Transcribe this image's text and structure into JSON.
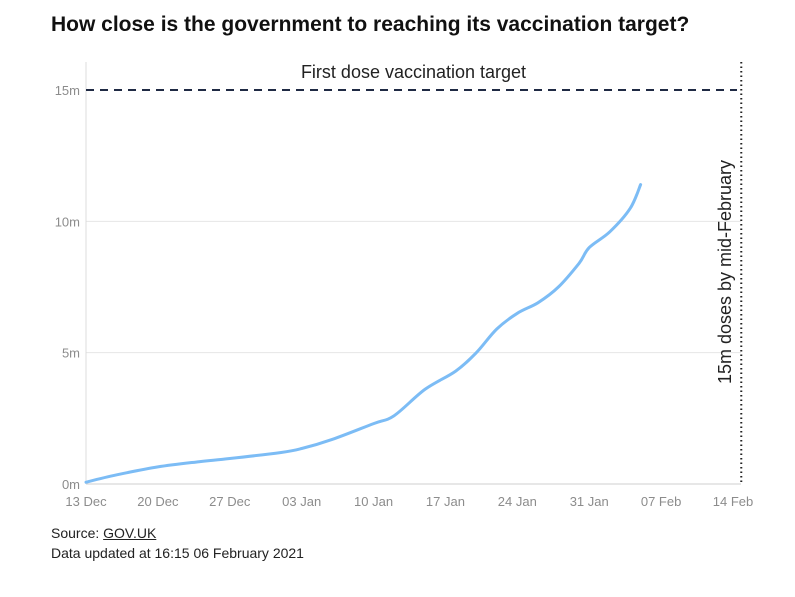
{
  "title": "How close is the government to reaching its vaccination target?",
  "chart_data": {
    "type": "line",
    "title": "How close is the government to reaching its vaccination target?",
    "xlabel": "",
    "ylabel": "",
    "x_ticks": [
      "13 Dec",
      "20 Dec",
      "27 Dec",
      "03 Jan",
      "10 Jan",
      "17 Jan",
      "24 Jan",
      "31 Jan",
      "07 Feb",
      "14 Feb"
    ],
    "x_range": [
      "2020-12-13",
      "2021-02-14"
    ],
    "y_ticks": [
      "0m",
      "5m",
      "10m",
      "15m"
    ],
    "ylim": [
      0,
      15
    ],
    "y_unit": "millions",
    "grid": "horizontal",
    "series": [
      {
        "name": "",
        "color": "#7cbcf5",
        "points": [
          {
            "x": "2020-12-13",
            "y": 0.07
          },
          {
            "x": "2020-12-16",
            "y": 0.35
          },
          {
            "x": "2020-12-20",
            "y": 0.65
          },
          {
            "x": "2020-12-24",
            "y": 0.85
          },
          {
            "x": "2020-12-27",
            "y": 0.97
          },
          {
            "x": "2021-01-01",
            "y": 1.2
          },
          {
            "x": "2021-01-03",
            "y": 1.35
          },
          {
            "x": "2021-01-06",
            "y": 1.7
          },
          {
            "x": "2021-01-10",
            "y": 2.3
          },
          {
            "x": "2021-01-12",
            "y": 2.6
          },
          {
            "x": "2021-01-15",
            "y": 3.6
          },
          {
            "x": "2021-01-18",
            "y": 4.3
          },
          {
            "x": "2021-01-20",
            "y": 5.0
          },
          {
            "x": "2021-01-22",
            "y": 5.9
          },
          {
            "x": "2021-01-24",
            "y": 6.5
          },
          {
            "x": "2021-01-26",
            "y": 6.9
          },
          {
            "x": "2021-01-28",
            "y": 7.5
          },
          {
            "x": "2021-01-30",
            "y": 8.4
          },
          {
            "x": "2021-01-31",
            "y": 9.0
          },
          {
            "x": "2021-02-02",
            "y": 9.6
          },
          {
            "x": "2021-02-04",
            "y": 10.5
          },
          {
            "x": "2021-02-05",
            "y": 11.4
          }
        ]
      }
    ],
    "reference_lines": [
      {
        "axis": "y",
        "value": 15,
        "style": "dashed",
        "color": "#1f2a44",
        "label": "First dose vaccination target"
      },
      {
        "axis": "x",
        "value": "2021-02-15",
        "style": "dotted",
        "color": "#222222",
        "label": "15m doses by mid-February"
      }
    ]
  },
  "footer": {
    "source_prefix": "Source: ",
    "source_link": "GOV.UK",
    "updated": "Data updated at 16:15 06 February 2021"
  }
}
